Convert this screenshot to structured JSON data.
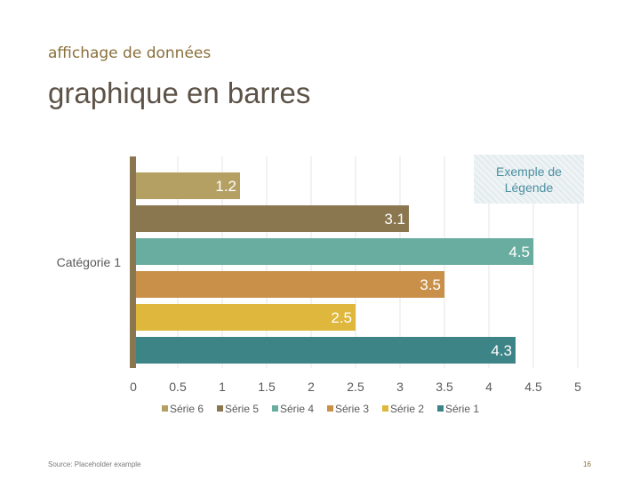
{
  "slide": {
    "subtitle": "affichage de données",
    "title": "graphique en barres",
    "legend_note": "Exemple de Légende",
    "source": "Source: Placeholder example",
    "page_number": "16"
  },
  "chart_data": {
    "type": "bar",
    "orientation": "horizontal",
    "categories": [
      "Catégorie 1"
    ],
    "series": [
      {
        "name": "Série 6",
        "values": [
          1.2
        ],
        "color": "#b5a064"
      },
      {
        "name": "Série 5",
        "values": [
          3.1
        ],
        "color": "#8a7750"
      },
      {
        "name": "Série 4",
        "values": [
          4.5
        ],
        "color": "#68ad9f"
      },
      {
        "name": "Série 3",
        "values": [
          3.5
        ],
        "color": "#c9904a"
      },
      {
        "name": "Série 2",
        "values": [
          2.5
        ],
        "color": "#dfb73c"
      },
      {
        "name": "Série 1",
        "values": [
          4.3
        ],
        "color": "#3d8487"
      }
    ],
    "x_ticks": [
      "0",
      "0.5",
      "1",
      "1.5",
      "2",
      "2.5",
      "3",
      "3.5",
      "4",
      "4.5",
      "5"
    ],
    "xlim": [
      0,
      5
    ],
    "grid": true,
    "legend_position": "bottom",
    "data_labels": [
      "1.2",
      "3.1",
      "4.5",
      "3.5",
      "2.5",
      "4.3"
    ],
    "axis_color": "#8a7750",
    "grid_color": "#e6e6e6"
  }
}
